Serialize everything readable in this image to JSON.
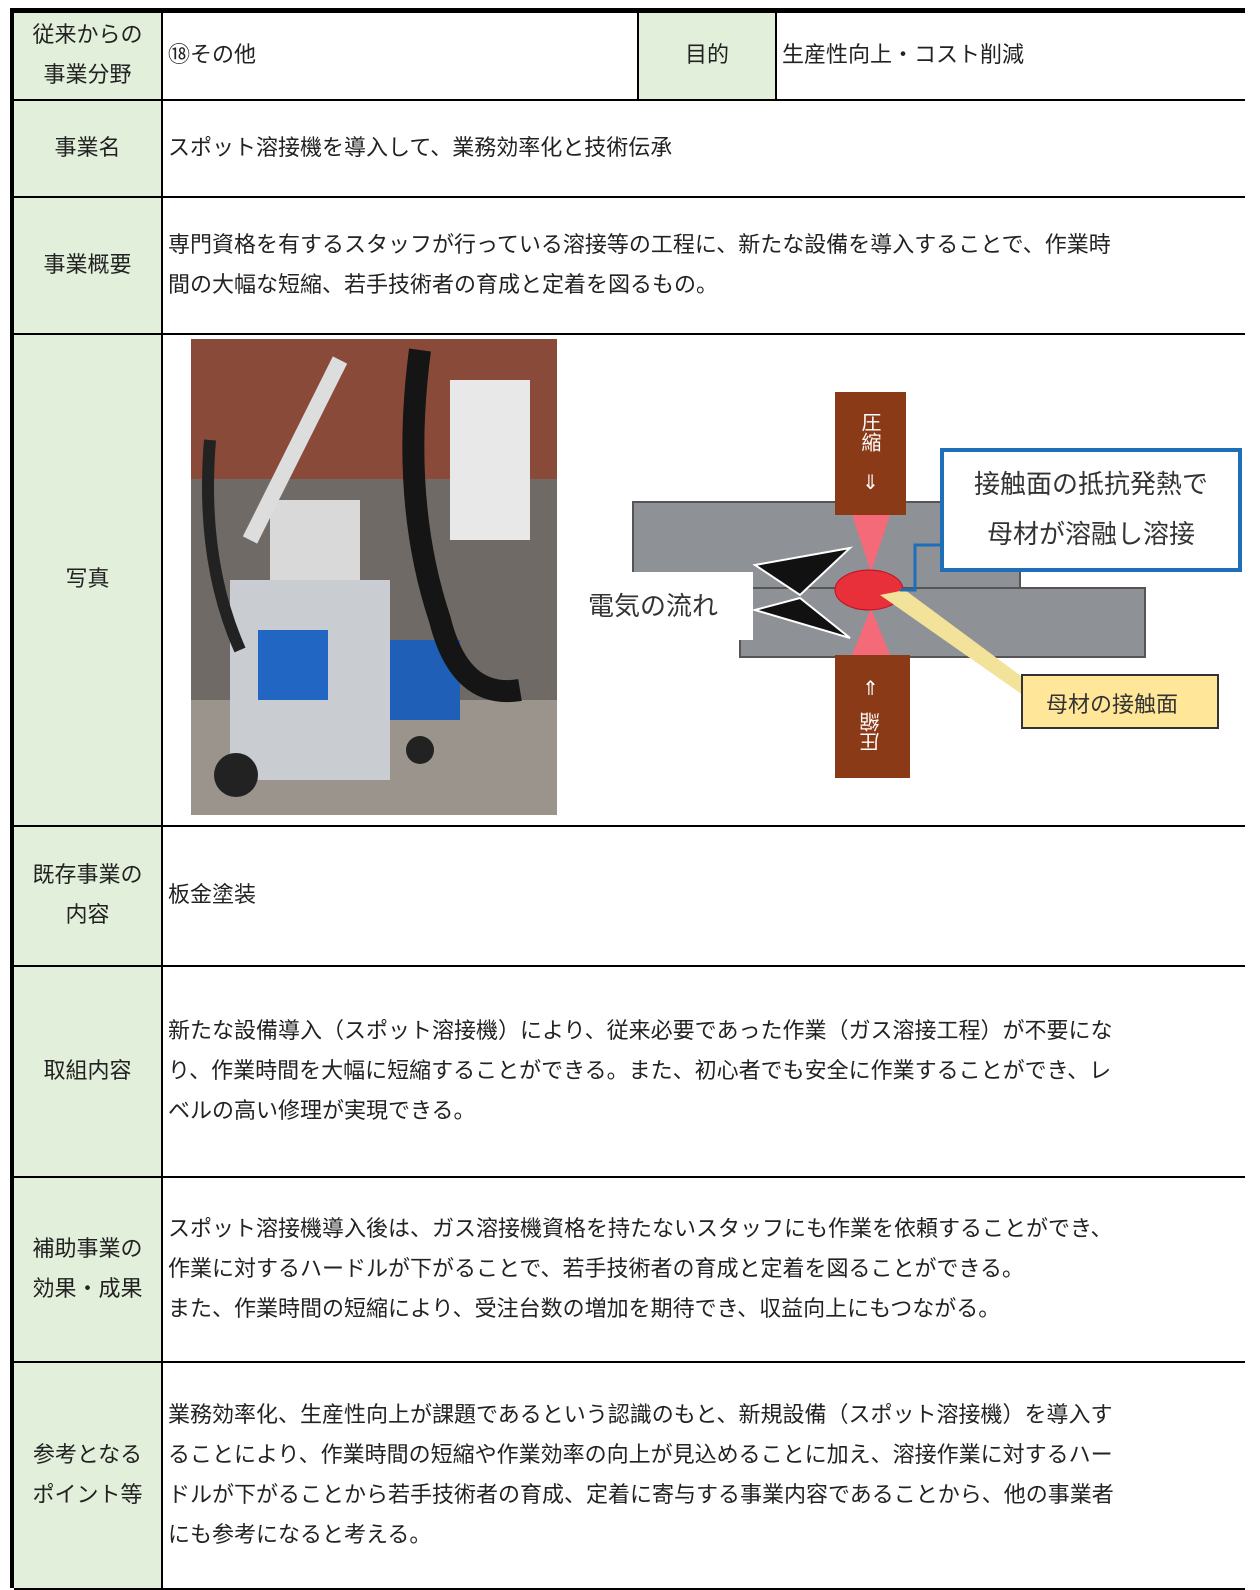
{
  "table": {
    "rows": [
      {
        "label": [
          "従来からの",
          "事業分野"
        ],
        "content": [
          "⑱その他"
        ],
        "purpose_label": "目的",
        "purpose_value": "生産性向上・コスト削減"
      },
      {
        "label": [
          "事業名"
        ],
        "content": [
          "スポット溶接機を導入して、業務効率化と技術伝承"
        ]
      },
      {
        "label": [
          "事業概要"
        ],
        "content": [
          "専門資格を有するスタッフが行っている溶接等の工程に、新たな設備を導入することで、作業時",
          "間の大幅な短縮、若手技術者の育成と定着を図るもの。"
        ]
      },
      {
        "label": [
          "写真"
        ]
      },
      {
        "label": [
          "既存事業の",
          "内容"
        ],
        "content": [
          "板金塗装"
        ]
      },
      {
        "label": [
          "取組内容"
        ],
        "content": [
          "新たな設備導入（スポット溶接機）により、従来必要であった作業（ガス溶接工程）が不要にな",
          "り、作業時間を大幅に短縮することができる。また、初心者でも安全に作業することができ、レ",
          "ベルの高い修理が実現できる。"
        ]
      },
      {
        "label": [
          "補助事業の",
          "効果・成果"
        ],
        "content": [
          "スポット溶接機導入後は、ガス溶接機資格を持たないスタッフにも作業を依頼することができ、",
          "作業に対するハードルが下がることで、若手技術者の育成と定着を図ることができる。",
          "また、作業時間の短縮により、受注台数の増加を期待でき、収益向上にもつながる。"
        ]
      },
      {
        "label": [
          "参考となる",
          "ポイント等"
        ],
        "content": [
          "業務効率化、生産性向上が課題であるという認識のもと、新規設備（スポット溶接機）を導入す",
          "ることにより、作業時間の短縮や作業効率の向上が見込めることに加え、溶接作業に対するハー",
          "ドルが下がることから若手技術者の育成、定着に寄与する事業内容であることから、他の事業者",
          "にも参考になると考える。"
        ]
      }
    ]
  },
  "diagram": {
    "top_label": "圧縮",
    "top_arrow": "⇓",
    "bottom_label": "圧縮",
    "bottom_arrow": "⇑",
    "callout": [
      "接触面の抵抗発熱で",
      "母材が溶融し溶接"
    ],
    "current_label": "電気の流れ",
    "contact_label": "母材の接触面"
  }
}
